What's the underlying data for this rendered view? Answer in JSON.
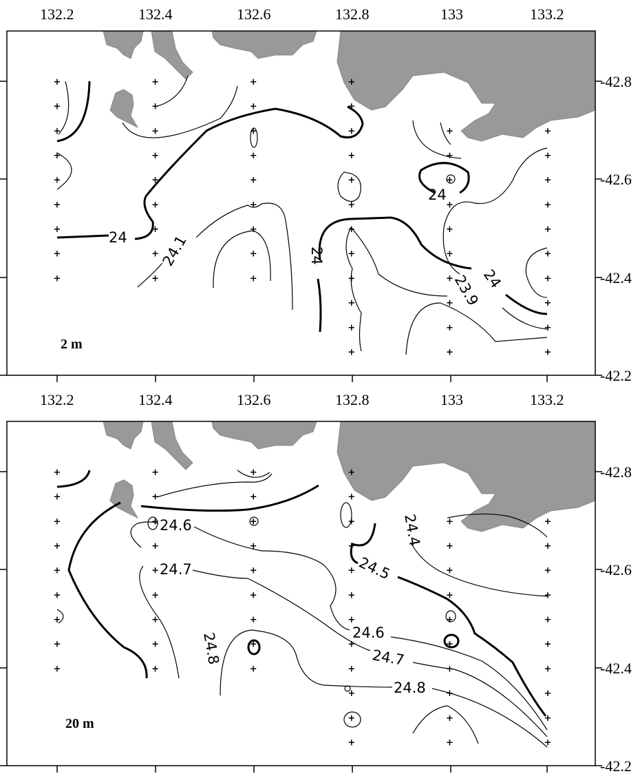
{
  "figure": {
    "x_tick_labels": [
      "132.2",
      "132.4",
      "132.6",
      "132.8",
      "133",
      "133.2"
    ],
    "y_tick_labels": [
      "-42.8",
      "-42.6",
      "-42.4",
      "-42.2"
    ],
    "land_color": "#999999",
    "panels": [
      {
        "depth_label": "2 m",
        "contour_labels": [
          "24",
          "24.1",
          "24",
          "24",
          "23.9",
          "24"
        ]
      },
      {
        "depth_label": "20 m",
        "contour_labels": [
          "24.6",
          "24.7",
          "24.8",
          "24.4",
          "24.5",
          "24.6",
          "24.7",
          "24.8"
        ]
      }
    ],
    "stations": {
      "132.2": [
        42.8,
        42.75,
        42.7,
        42.65,
        42.6,
        42.55,
        42.5,
        42.45,
        42.4
      ],
      "132.4": [
        42.8,
        42.75,
        42.7,
        42.65,
        42.6,
        42.55,
        42.5,
        42.45,
        42.4
      ],
      "132.6": [
        42.8,
        42.75,
        42.7,
        42.65,
        42.6,
        42.55,
        42.5,
        42.45,
        42.4
      ],
      "132.8": [
        42.8,
        42.75,
        42.7,
        42.65,
        42.6,
        42.55,
        42.5,
        42.45,
        42.4,
        42.35,
        42.3,
        42.25
      ],
      "133": [
        42.7,
        42.65,
        42.6,
        42.55,
        42.5,
        42.45,
        42.4,
        42.35,
        42.3,
        42.25
      ],
      "133.2": [
        42.7,
        42.65,
        42.6,
        42.55,
        42.5,
        42.45,
        42.4,
        42.35,
        42.3,
        42.25
      ]
    }
  }
}
